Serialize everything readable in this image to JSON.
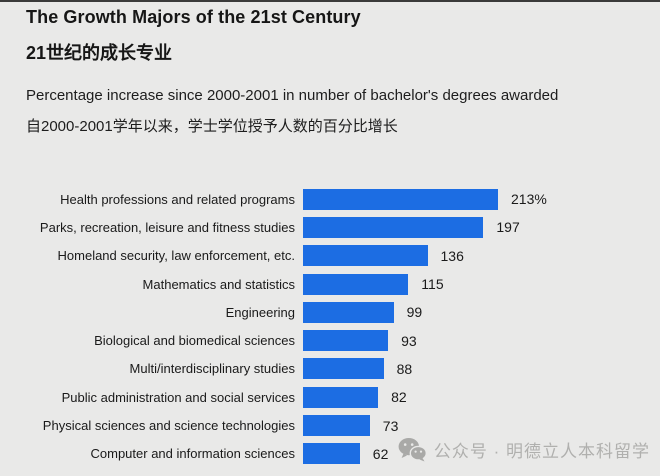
{
  "page": {
    "title_en": "The Growth Majors of the 21st Century",
    "title_zh": "21世纪的成长专业",
    "subtitle_en": "Percentage increase since 2000-2001 in number of bachelor's degrees awarded",
    "subtitle_zh": "自2000-2001学年以来，学士学位授予人数的百分比增长"
  },
  "chart_data": {
    "type": "bar",
    "orientation": "horizontal",
    "title": "The Growth Majors of the 21st Century",
    "subtitle": "Percentage increase since 2000-2001 in number of bachelor's degrees awarded",
    "xlabel": "",
    "ylabel": "",
    "xlim": [
      0,
      213
    ],
    "grid": false,
    "legend": false,
    "bar_color": "#1c6de3",
    "categories": [
      "Health professions and related programs",
      "Parks, recreation, leisure and fitness studies",
      "Homeland security, law enforcement, etc.",
      "Mathematics and statistics",
      "Engineering",
      "Biological and biomedical sciences",
      "Multi/interdisciplinary studies",
      "Public administration and social services",
      "Physical sciences and science technologies",
      "Computer and information sciences"
    ],
    "values": [
      213,
      197,
      136,
      115,
      99,
      93,
      88,
      82,
      73,
      62
    ],
    "value_labels": [
      "213%",
      "197",
      "136",
      "115",
      "99",
      "93",
      "88",
      "82",
      "73",
      "62"
    ]
  },
  "watermark": {
    "icon": "wechat-icon",
    "text": "公众号 · 明德立人本科留学",
    "color": "#b0b0ae"
  },
  "colors": {
    "background": "#e9e9e8",
    "bar": "#1c6de3",
    "text": "#1a1a1a"
  }
}
